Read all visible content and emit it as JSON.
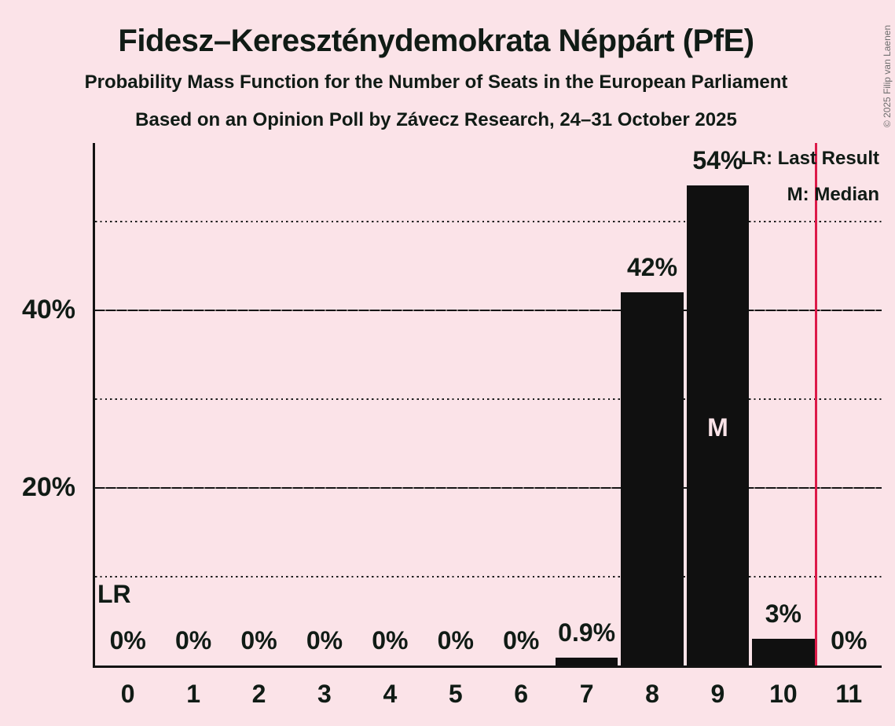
{
  "title": "Fidesz–Kereszténydemokrata Néppárt (PfE)",
  "subtitle": "Probability Mass Function for the Number of Seats in the European Parliament",
  "source_line": "Based on an Opinion Poll by Závecz Research, 24–31 October 2025",
  "copyright": "© 2025 Filip van Laenen",
  "legend": {
    "last_result": "LR: Last Result",
    "median": "M: Median"
  },
  "colors": {
    "background": "#fbe3e8",
    "bar": "#101010",
    "text": "#101b15",
    "last_result_line": "#dc1a49",
    "median_label": "#fbe3e8",
    "copyright": "#6d6d6d"
  },
  "chart_data": {
    "type": "bar",
    "title": "Fidesz–Kereszténydemokrata Néppárt (PfE)",
    "subtitle": "Probability Mass Function for the Number of Seats in the European Parliament",
    "source": "Based on an Opinion Poll by Závecz Research, 24–31 October 2025",
    "xlabel": "",
    "ylabel": "",
    "categories": [
      "0",
      "1",
      "2",
      "3",
      "4",
      "5",
      "6",
      "7",
      "8",
      "9",
      "10",
      "11"
    ],
    "values": [
      0,
      0,
      0,
      0,
      0,
      0,
      0,
      0.9,
      42,
      54,
      3,
      0
    ],
    "bar_labels": [
      "0%",
      "0%",
      "0%",
      "0%",
      "0%",
      "0%",
      "0%",
      "0.9%",
      "42%",
      "54%",
      "3%",
      "0%"
    ],
    "ylim": [
      0,
      58.8
    ],
    "solid_gridlines": [
      20,
      40
    ],
    "dotted_gridlines": [
      10,
      30,
      50
    ],
    "ytick_labels": {
      "20": "20%",
      "40": "40%"
    },
    "grid": "horizontal",
    "legend_position": "top-right",
    "median_category": "9",
    "median_marker": "M",
    "last_result_marker": "LR",
    "last_result_boundary": 11
  }
}
